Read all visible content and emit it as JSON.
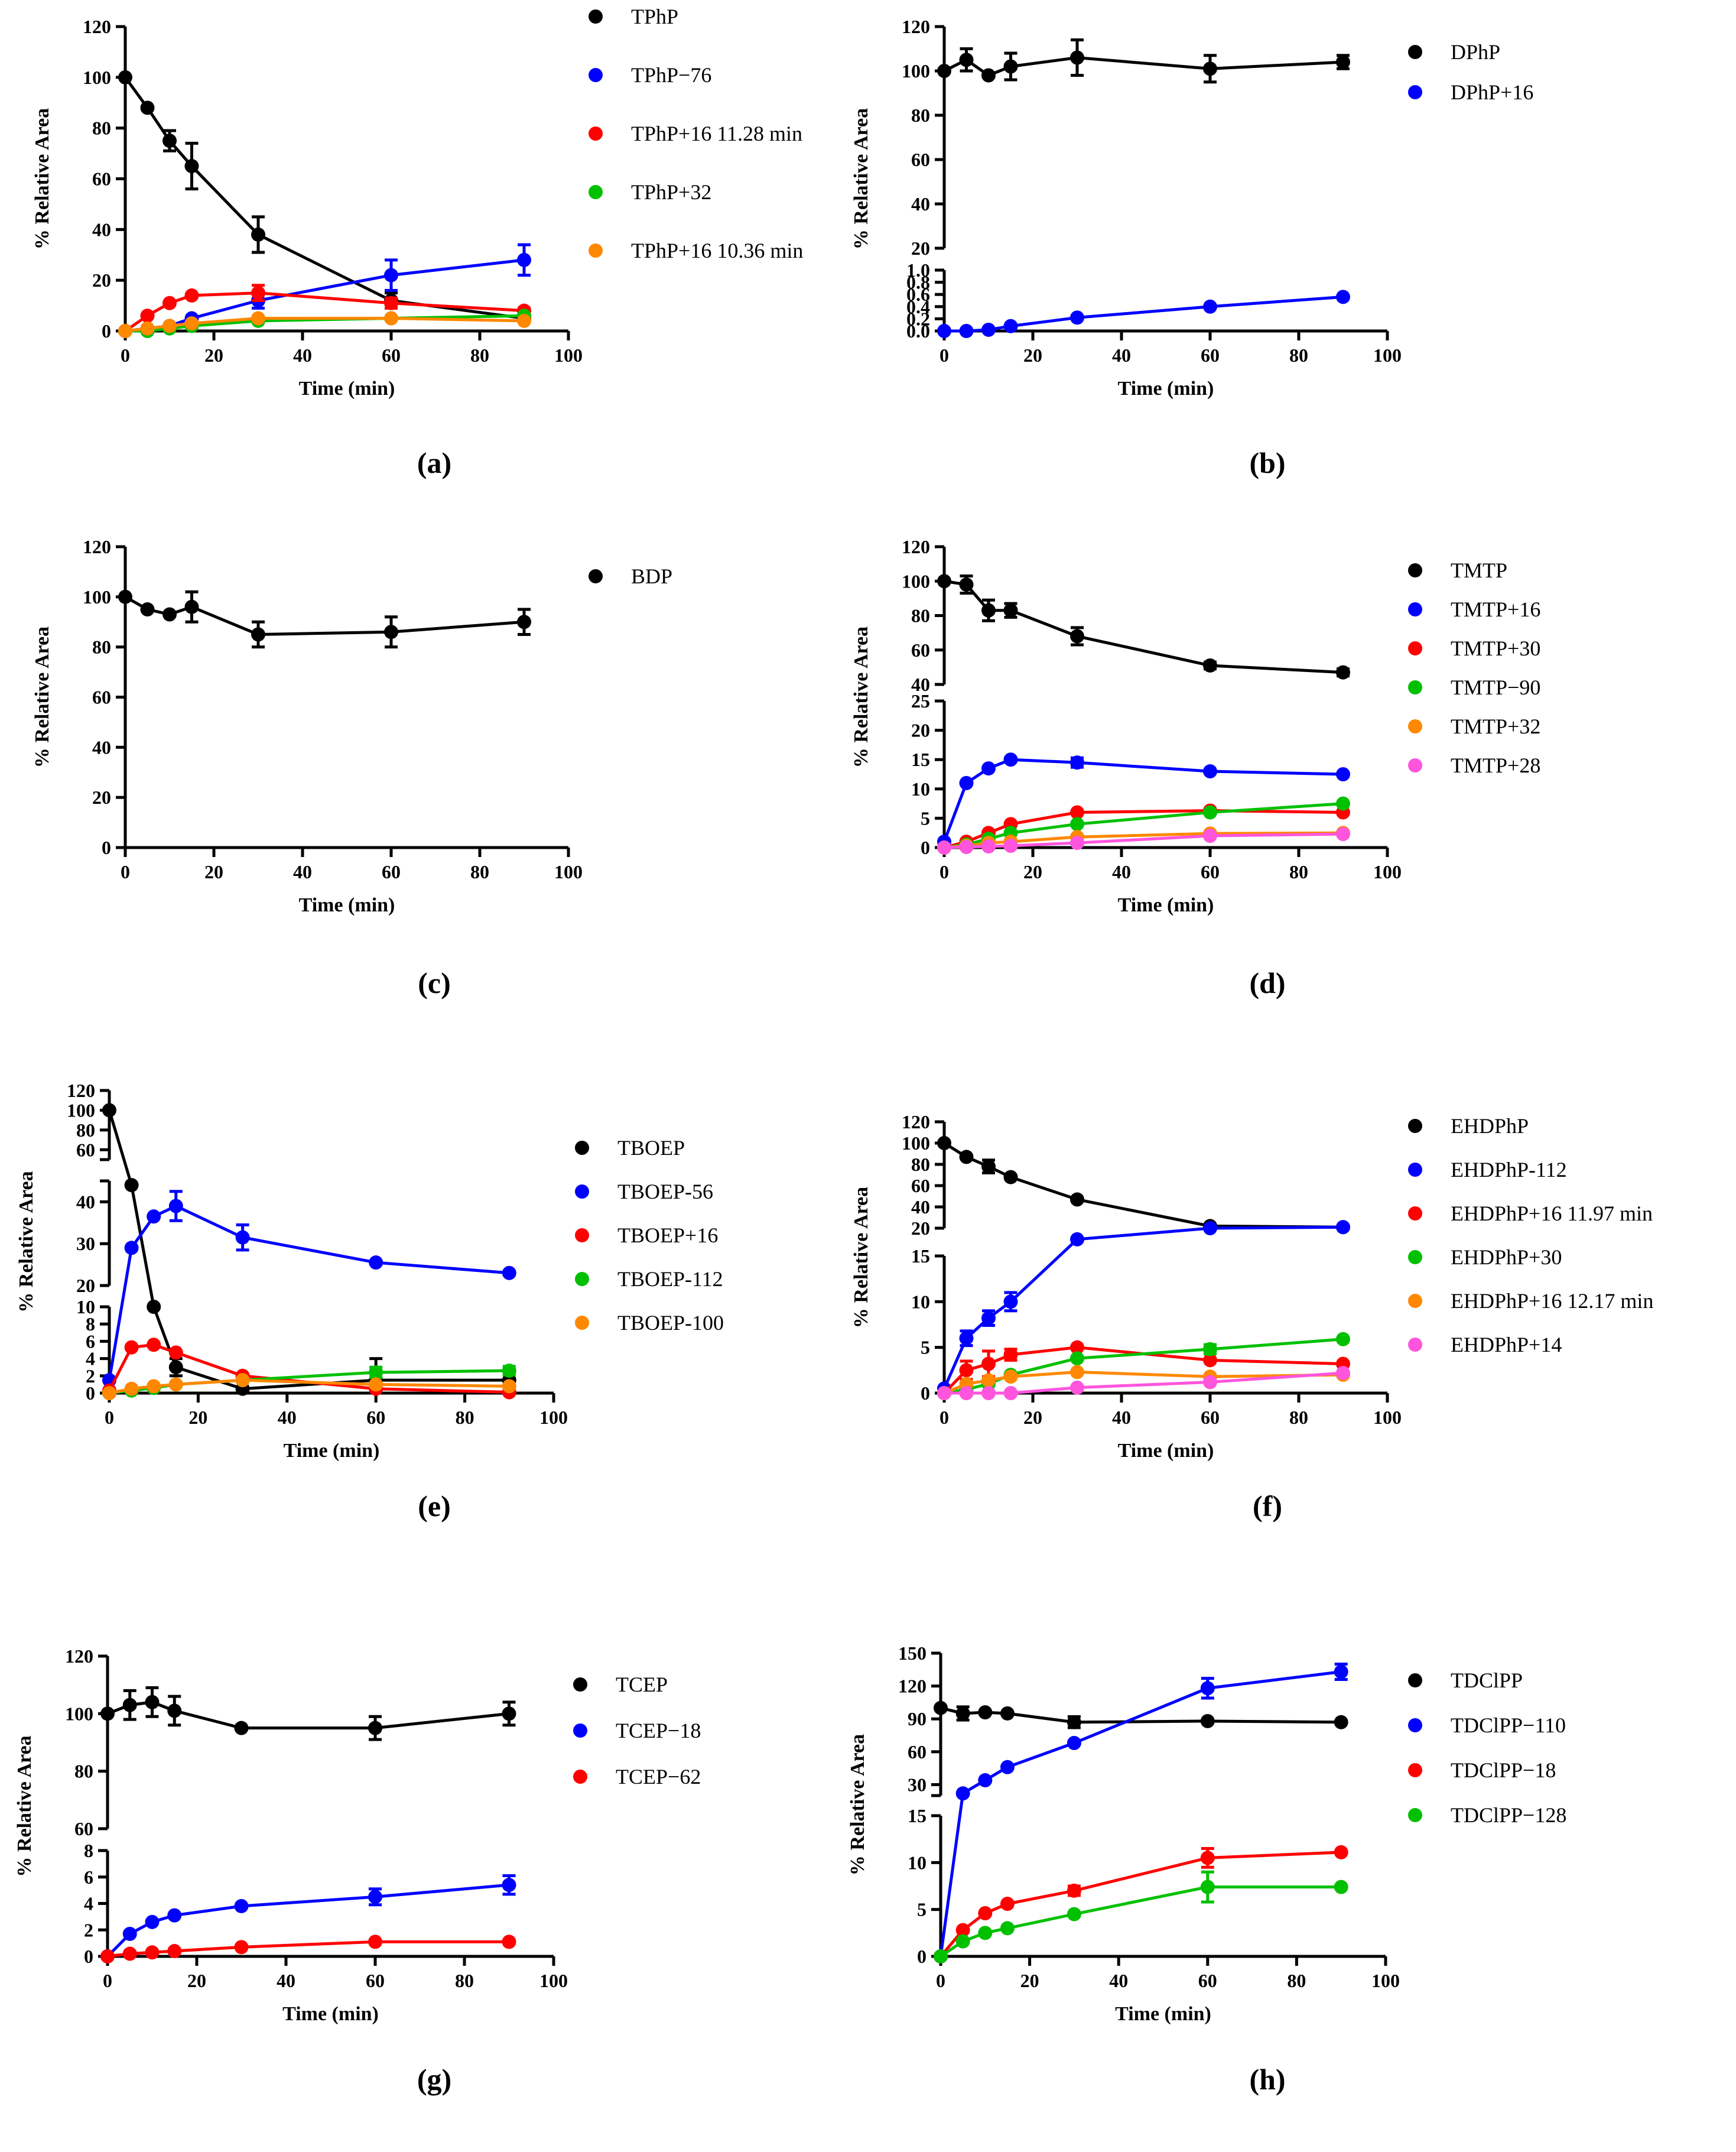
{
  "chart_data": [
    {
      "panel": "(a)",
      "type": "line",
      "xlabel": "Time (min)",
      "ylabel": "% Relative Area",
      "x": [
        0,
        5,
        10,
        15,
        30,
        60,
        90
      ],
      "xlim": [
        0,
        100
      ],
      "xticks": [
        0,
        20,
        40,
        60,
        80,
        100
      ],
      "y_segments": [
        {
          "range": [
            0,
            120
          ],
          "ticks": [
            0,
            20,
            40,
            60,
            80,
            100,
            120
          ]
        }
      ],
      "series": [
        {
          "name": "TPhP",
          "color": "#000000",
          "values": [
            100,
            88,
            75,
            65,
            38,
            12,
            5
          ],
          "err": [
            0,
            0,
            4,
            9,
            7,
            3,
            1
          ]
        },
        {
          "name": "TPhP−76",
          "color": "#0000ff",
          "values": [
            0,
            1,
            2,
            5,
            12,
            22,
            28
          ],
          "err": [
            0,
            0,
            0,
            0,
            3,
            6,
            6
          ]
        },
        {
          "name": "TPhP+16 11.28 min",
          "color": "#ff0000",
          "values": [
            0,
            6,
            11,
            14,
            15,
            11,
            8
          ],
          "err": [
            0,
            0,
            0,
            0,
            3,
            2,
            1
          ]
        },
        {
          "name": "TPhP+32",
          "color": "#00c000",
          "values": [
            0,
            0,
            1,
            2,
            4,
            5,
            6
          ],
          "err": [
            0,
            0,
            0,
            0,
            0,
            0,
            0
          ]
        },
        {
          "name": "TPhP+16 10.36 min",
          "color": "#ff8800",
          "values": [
            0,
            1,
            2,
            3,
            5,
            5,
            4
          ],
          "err": [
            0,
            0,
            0,
            0,
            0,
            0,
            0
          ]
        }
      ]
    },
    {
      "panel": "(b)",
      "type": "line",
      "xlabel": "Time (min)",
      "ylabel": "% Relative Area",
      "x": [
        0,
        5,
        10,
        15,
        30,
        60,
        90
      ],
      "xlim": [
        0,
        100
      ],
      "xticks": [
        0,
        20,
        40,
        60,
        80,
        100
      ],
      "y_segments": [
        {
          "range": [
            0,
            1.0
          ],
          "ticks": [
            0.0,
            0.2,
            0.4,
            0.6,
            0.8,
            1.0
          ],
          "tick_labels": [
            "0.0",
            "0.2",
            "0.4",
            "0.6",
            "0.8",
            "1.0"
          ]
        },
        {
          "range": [
            20,
            120
          ],
          "ticks": [
            20,
            40,
            60,
            80,
            100,
            120
          ]
        }
      ],
      "series": [
        {
          "name": "DPhP",
          "color": "#000000",
          "values": [
            100,
            105,
            98,
            102,
            106,
            101,
            104
          ],
          "err": [
            0,
            5,
            0,
            6,
            8,
            6,
            3
          ]
        },
        {
          "name": "DPhP+16",
          "color": "#0000ff",
          "values": [
            0,
            0,
            0.02,
            0.08,
            0.22,
            0.4,
            0.56
          ],
          "err": [
            0,
            0,
            0,
            0,
            0,
            0,
            0
          ]
        }
      ]
    },
    {
      "panel": "(c)",
      "type": "line",
      "xlabel": "Time (min)",
      "ylabel": "% Relative Area",
      "x": [
        0,
        5,
        10,
        15,
        30,
        60,
        90
      ],
      "xlim": [
        0,
        100
      ],
      "xticks": [
        0,
        20,
        40,
        60,
        80,
        100
      ],
      "y_segments": [
        {
          "range": [
            0,
            120
          ],
          "ticks": [
            0,
            20,
            40,
            60,
            80,
            100,
            120
          ]
        }
      ],
      "series": [
        {
          "name": "BDP",
          "color": "#000000",
          "values": [
            100,
            95,
            93,
            96,
            85,
            86,
            90
          ],
          "err": [
            0,
            0,
            0,
            6,
            5,
            6,
            5
          ]
        }
      ]
    },
    {
      "panel": "(d)",
      "type": "line",
      "xlabel": "Time (min)",
      "ylabel": "% Relative Area",
      "x": [
        0,
        5,
        10,
        15,
        30,
        60,
        90
      ],
      "xlim": [
        0,
        100
      ],
      "xticks": [
        0,
        20,
        40,
        60,
        80,
        100
      ],
      "y_segments": [
        {
          "range": [
            0,
            25
          ],
          "ticks": [
            0,
            5,
            10,
            15,
            20,
            25
          ]
        },
        {
          "range": [
            40,
            120
          ],
          "ticks": [
            40,
            60,
            80,
            100,
            120
          ]
        }
      ],
      "series": [
        {
          "name": "TMTP",
          "color": "#000000",
          "values": [
            100,
            98,
            83,
            83,
            68,
            51,
            47
          ],
          "err": [
            0,
            5,
            6,
            4,
            5,
            2,
            2
          ]
        },
        {
          "name": "TMTP+16",
          "color": "#0000ff",
          "values": [
            1,
            11,
            13.5,
            15,
            14.5,
            13,
            12.5
          ],
          "err": [
            0,
            0,
            0,
            0,
            0.8,
            0,
            0
          ]
        },
        {
          "name": "TMTP+30",
          "color": "#ff0000",
          "values": [
            0,
            1,
            2.5,
            4,
            6,
            6.3,
            6
          ],
          "err": [
            0,
            0,
            0,
            0,
            0,
            0,
            0
          ]
        },
        {
          "name": "TMTP−90",
          "color": "#00c000",
          "values": [
            0,
            0.5,
            1.5,
            2.5,
            4,
            6,
            7.5
          ],
          "err": [
            0,
            0,
            0,
            0,
            0,
            0,
            0
          ]
        },
        {
          "name": "TMTP+32",
          "color": "#ff8800",
          "values": [
            0,
            0.3,
            0.8,
            1,
            1.8,
            2.4,
            2.5
          ],
          "err": [
            0,
            0,
            0,
            0,
            0,
            0,
            0
          ]
        },
        {
          "name": "TMTP+28",
          "color": "#ff55dd",
          "values": [
            0,
            0.1,
            0.2,
            0.3,
            0.8,
            2,
            2.3
          ],
          "err": [
            0,
            0,
            0,
            0,
            0,
            0,
            0
          ]
        }
      ]
    },
    {
      "panel": "(e)",
      "type": "line",
      "xlabel": "Time (min)",
      "ylabel": "% Relative Area",
      "x": [
        0,
        5,
        10,
        15,
        30,
        60,
        90
      ],
      "xlim": [
        0,
        100
      ],
      "xticks": [
        0,
        20,
        40,
        60,
        80,
        100
      ],
      "y_segments": [
        {
          "range": [
            0,
            10
          ],
          "ticks": [
            0,
            2,
            4,
            6,
            8,
            10
          ]
        },
        {
          "range": [
            20,
            45
          ],
          "ticks": [
            20,
            30,
            40
          ]
        },
        {
          "range": [
            50,
            120
          ],
          "ticks": [
            60,
            80,
            100,
            120
          ]
        }
      ],
      "series": [
        {
          "name": "TBOEP",
          "color": "#000000",
          "values": [
            100,
            44,
            10,
            3,
            0.5,
            1.5,
            1.5
          ],
          "err": [
            0,
            0,
            0,
            1,
            0,
            2.5,
            1
          ]
        },
        {
          "name": "TBOEP-56",
          "color": "#0000ff",
          "values": [
            1.5,
            29,
            36.5,
            39,
            31.5,
            25.5,
            23
          ],
          "err": [
            0,
            0,
            0,
            3.5,
            3,
            0,
            0
          ]
        },
        {
          "name": "TBOEP+16",
          "color": "#ff0000",
          "values": [
            0.3,
            5.3,
            5.6,
            4.7,
            2,
            0.5,
            0.1
          ],
          "err": [
            0,
            0,
            0,
            0,
            0,
            0,
            0
          ]
        },
        {
          "name": "TBOEP-112",
          "color": "#00c000",
          "values": [
            0,
            0.3,
            0.6,
            1,
            1.5,
            2.4,
            2.6
          ],
          "err": [
            0,
            0,
            0,
            0,
            0,
            0.6,
            0.5
          ]
        },
        {
          "name": "TBOEP-100",
          "color": "#ff8800",
          "values": [
            0,
            0.5,
            0.8,
            1,
            1.5,
            1,
            0.8
          ],
          "err": [
            0,
            0,
            0,
            0,
            0,
            0,
            0
          ]
        }
      ]
    },
    {
      "panel": "(f)",
      "type": "line",
      "xlabel": "Time (min)",
      "ylabel": "% Relative Area",
      "x": [
        0,
        5,
        10,
        15,
        30,
        60,
        90
      ],
      "xlim": [
        0,
        100
      ],
      "xticks": [
        0,
        20,
        40,
        60,
        80,
        100
      ],
      "y_segments": [
        {
          "range": [
            0,
            15
          ],
          "ticks": [
            0,
            5,
            10,
            15
          ]
        },
        {
          "range": [
            20,
            120
          ],
          "ticks": [
            20,
            40,
            60,
            80,
            100,
            120
          ]
        }
      ],
      "series": [
        {
          "name": "EHDPhP",
          "color": "#000000",
          "values": [
            100,
            87,
            78,
            68,
            47,
            22,
            21
          ],
          "err": [
            0,
            0,
            6,
            0,
            0,
            0,
            0
          ]
        },
        {
          "name": "EHDPhP-112",
          "color": "#0000ff",
          "values": [
            0.5,
            6,
            8.2,
            10,
            18,
            20,
            21
          ],
          "err": [
            0,
            0.8,
            0.8,
            1,
            0,
            0,
            0
          ]
        },
        {
          "name": "EHDPhP+16 11.97 min",
          "color": "#ff0000",
          "values": [
            0,
            2.5,
            3.2,
            4.2,
            5,
            3.6,
            3.2
          ],
          "err": [
            0,
            1,
            1.4,
            0.6,
            0,
            0,
            0
          ]
        },
        {
          "name": "EHDPhP+30",
          "color": "#00c000",
          "values": [
            0,
            0.4,
            1,
            2,
            3.8,
            4.8,
            5.9
          ],
          "err": [
            0,
            0,
            0,
            0,
            0,
            0.5,
            0
          ]
        },
        {
          "name": "EHDPhP+16 12.17 min",
          "color": "#ff8800",
          "values": [
            0,
            1,
            1.4,
            1.8,
            2.3,
            1.8,
            2
          ],
          "err": [
            0,
            0,
            0,
            0,
            0,
            0,
            0
          ]
        },
        {
          "name": "EHDPhP+14",
          "color": "#ff55dd",
          "values": [
            0,
            0,
            0,
            0,
            0.6,
            1.2,
            2.2
          ],
          "err": [
            0,
            0,
            0,
            0,
            0,
            0,
            0
          ]
        }
      ]
    },
    {
      "panel": "(g)",
      "type": "line",
      "xlabel": "Time (min)",
      "ylabel": "% Relative Area",
      "x": [
        0,
        5,
        10,
        15,
        30,
        60,
        90
      ],
      "xlim": [
        0,
        100
      ],
      "xticks": [
        0,
        20,
        40,
        60,
        80,
        100
      ],
      "y_segments": [
        {
          "range": [
            0,
            8
          ],
          "ticks": [
            0,
            2,
            4,
            6,
            8
          ]
        },
        {
          "range": [
            60,
            120
          ],
          "ticks": [
            60,
            80,
            100,
            120
          ]
        }
      ],
      "series": [
        {
          "name": "TCEP",
          "color": "#000000",
          "values": [
            100,
            103,
            104,
            101,
            95,
            95,
            100
          ],
          "err": [
            0,
            5,
            5,
            5,
            0,
            4,
            4
          ]
        },
        {
          "name": "TCEP−18",
          "color": "#0000ff",
          "values": [
            0,
            1.7,
            2.6,
            3.1,
            3.8,
            4.5,
            5.4
          ],
          "err": [
            0,
            0,
            0,
            0,
            0,
            0.6,
            0.7
          ]
        },
        {
          "name": "TCEP−62",
          "color": "#ff0000",
          "values": [
            0,
            0.2,
            0.3,
            0.4,
            0.7,
            1.1,
            1.1
          ],
          "err": [
            0,
            0,
            0,
            0,
            0,
            0,
            0
          ]
        }
      ]
    },
    {
      "panel": "(h)",
      "type": "line",
      "xlabel": "Time (min)",
      "ylabel": "% Relative Area",
      "x": [
        0,
        5,
        10,
        15,
        30,
        60,
        90
      ],
      "xlim": [
        0,
        100
      ],
      "xticks": [
        0,
        20,
        40,
        60,
        80,
        100
      ],
      "y_segments": [
        {
          "range": [
            0,
            15
          ],
          "ticks": [
            0,
            5,
            10,
            15
          ]
        },
        {
          "range": [
            20,
            150
          ],
          "ticks": [
            30,
            60,
            90,
            120,
            150
          ]
        }
      ],
      "series": [
        {
          "name": "TDClPP",
          "color": "#000000",
          "values": [
            100,
            95,
            96,
            95,
            87,
            88,
            87
          ],
          "err": [
            0,
            6,
            0,
            0,
            5,
            0,
            0
          ]
        },
        {
          "name": "TDClPP−110",
          "color": "#0000ff",
          "values": [
            0,
            22,
            34,
            46,
            68,
            118,
            133
          ],
          "err": [
            0,
            0,
            0,
            0,
            0,
            9,
            7
          ]
        },
        {
          "name": "TDClPP−18",
          "color": "#ff0000",
          "values": [
            0,
            2.8,
            4.6,
            5.6,
            7,
            10.5,
            11.1
          ],
          "err": [
            0,
            0,
            0,
            0,
            0.5,
            1,
            0
          ]
        },
        {
          "name": "TDClPP−128",
          "color": "#00c000",
          "values": [
            0,
            1.6,
            2.5,
            3,
            4.5,
            7.4,
            7.4
          ],
          "err": [
            0,
            0,
            0,
            0,
            0,
            1.6,
            0
          ]
        }
      ]
    }
  ]
}
